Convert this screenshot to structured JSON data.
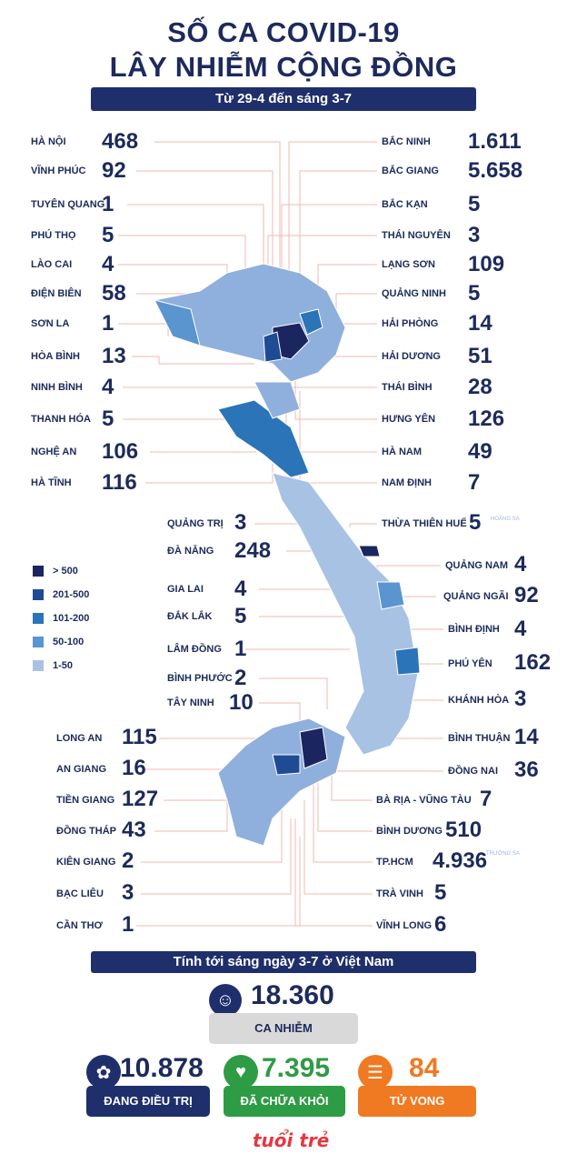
{
  "title": {
    "line1": "SỐ CA COVID-19",
    "line2": "LÂY NHIỄM CỘNG ĐỒNG"
  },
  "subtitle": "Từ 29-4 đến sáng 3-7",
  "left_provinces": [
    {
      "name": "HÀ NỘI",
      "value": "468"
    },
    {
      "name": "VĨNH PHÚC",
      "value": "92"
    },
    {
      "name": "TUYÊN QUANG",
      "value": "1"
    },
    {
      "name": "PHÚ THỌ",
      "value": "5"
    },
    {
      "name": "LÀO CAI",
      "value": "4"
    },
    {
      "name": "ĐIỆN BIÊN",
      "value": "58"
    },
    {
      "name": "SƠN LA",
      "value": "1"
    },
    {
      "name": "HÒA BÌNH",
      "value": "13"
    },
    {
      "name": "NINH BÌNH",
      "value": "4"
    },
    {
      "name": "THANH HÓA",
      "value": "5"
    },
    {
      "name": "NGHỆ AN",
      "value": "106"
    },
    {
      "name": "HÀ TĨNH",
      "value": "116"
    }
  ],
  "right_provinces": [
    {
      "name": "BẮC NINH",
      "value": "1.611"
    },
    {
      "name": "BẮC GIANG",
      "value": "5.658"
    },
    {
      "name": "BẮC KẠN",
      "value": "5"
    },
    {
      "name": "THÁI NGUYÊN",
      "value": "3"
    },
    {
      "name": "LẠNG SƠN",
      "value": "109"
    },
    {
      "name": "QUẢNG NINH",
      "value": "5"
    },
    {
      "name": "HẢI PHÒNG",
      "value": "14"
    },
    {
      "name": "HẢI DƯƠNG",
      "value": "51"
    },
    {
      "name": "THÁI BÌNH",
      "value": "28"
    },
    {
      "name": "HƯNG YÊN",
      "value": "126"
    },
    {
      "name": "HÀ NAM",
      "value": "49"
    },
    {
      "name": "NAM ĐỊNH",
      "value": "7"
    }
  ],
  "center_left": [
    {
      "name": "QUẢNG TRỊ",
      "value": "3"
    },
    {
      "name": "ĐÀ NẴNG",
      "value": "248"
    },
    {
      "name": "GIA LAI",
      "value": "4"
    },
    {
      "name": "ĐẮK LẮK",
      "value": "5"
    },
    {
      "name": "LÂM ĐỒNG",
      "value": "1"
    },
    {
      "name": "BÌNH PHƯỚC",
      "value": "2"
    },
    {
      "name": "TÂY NINH",
      "value": "10"
    }
  ],
  "center_right": [
    {
      "name": "THỪA THIÊN HUẾ",
      "value": "5"
    },
    {
      "name": "QUẢNG NAM",
      "value": "4"
    },
    {
      "name": "QUẢNG NGÃI",
      "value": "92"
    },
    {
      "name": "BÌNH ĐỊNH",
      "value": "4"
    },
    {
      "name": "PHÚ YÊN",
      "value": "162"
    },
    {
      "name": "KHÁNH HÒA",
      "value": "3"
    }
  ],
  "south_left": [
    {
      "name": "LONG AN",
      "value": "115"
    },
    {
      "name": "AN GIANG",
      "value": "16"
    },
    {
      "name": "TIỀN GIANG",
      "value": "127"
    },
    {
      "name": "ĐỒNG THÁP",
      "value": "43"
    },
    {
      "name": "KIÊN GIANG",
      "value": "2"
    },
    {
      "name": "BẠC LIÊU",
      "value": "3"
    },
    {
      "name": "CẦN THƠ",
      "value": "1"
    }
  ],
  "south_right": [
    {
      "name": "BÌNH THUẬN",
      "value": "14"
    },
    {
      "name": "ĐỒNG NAI",
      "value": "36"
    },
    {
      "name": "BÀ RỊA - VŨNG TÀU",
      "value": "7"
    },
    {
      "name": "BÌNH DƯƠNG",
      "value": "510"
    },
    {
      "name": "TP.HCM",
      "value": "4.936"
    },
    {
      "name": "TRÀ VINH",
      "value": "5"
    },
    {
      "name": "VĨNH LONG",
      "value": "6"
    }
  ],
  "islands": {
    "hoang_sa": "HOÀNG SA",
    "truong_sa": "TRƯỜNG SA"
  },
  "legend": [
    {
      "label": "> 500",
      "color": "#1b2660"
    },
    {
      "label": "201-500",
      "color": "#1f4a94"
    },
    {
      "label": "101-200",
      "color": "#2b74b8"
    },
    {
      "label": "50-100",
      "color": "#5b95cf"
    },
    {
      "label": "1-50",
      "color": "#a8c2e3"
    }
  ],
  "summary": {
    "header": "Tính tới sáng ngày 3-7 ở Việt Nam",
    "total_value": "18.360",
    "total_label": "CA NHIỄM",
    "treating_value": "10.878",
    "treating_label": "ĐANG ĐIỀU TRỊ",
    "recovered_value": "7.395",
    "recovered_label": "ĐÃ CHỮA KHỎI",
    "deaths_value": "84",
    "deaths_label": "TỬ VONG"
  },
  "colors": {
    "navy": "#1f2f6b",
    "green": "#2e9b45",
    "orange": "#ef7a22",
    "grey": "#d9d9d9"
  },
  "logo": "tuổi trẻ"
}
